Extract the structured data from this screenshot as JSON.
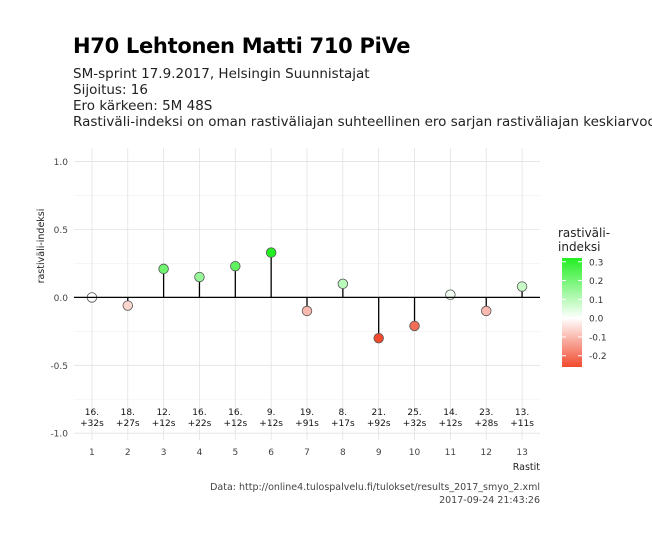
{
  "header": {
    "title": "H70 Lehtonen Matti 710 PiVe",
    "subtitle_lines": [
      "SM-sprint 17.9.2017, Helsingin Suunnistajat",
      "Sijoitus: 16",
      "Ero kärkeen: 5M 48S",
      "Rastiväli-indeksi on oman rastiväliajan suhteellinen ero sarjan rastiväliajan keskiarvoon"
    ]
  },
  "chart_data": {
    "type": "scatter",
    "title": "H70 Lehtonen Matti 710 PiVe",
    "xlabel": "Rastit",
    "ylabel": "rastiväli-indeksi",
    "xlim": [
      0.5,
      13.5
    ],
    "ylim": [
      -1.05,
      1.1
    ],
    "yticks": [
      -1.0,
      -0.5,
      0.0,
      0.5,
      1.0
    ],
    "ytick_labels": [
      "-1.0",
      "-0.5",
      "0.0",
      "0.5",
      "1.0"
    ],
    "xticks": [
      "1",
      "2",
      "3",
      "4",
      "5",
      "6",
      "7",
      "8",
      "9",
      "10",
      "11",
      "12",
      "13"
    ],
    "grid": true,
    "points": [
      {
        "x": 1,
        "y": 0.0,
        "rank": "16.",
        "diff": "+32s"
      },
      {
        "x": 2,
        "y": -0.06,
        "rank": "18.",
        "diff": "+27s"
      },
      {
        "x": 3,
        "y": 0.21,
        "rank": "12.",
        "diff": "+12s"
      },
      {
        "x": 4,
        "y": 0.15,
        "rank": "16.",
        "diff": "+22s"
      },
      {
        "x": 5,
        "y": 0.23,
        "rank": "16.",
        "diff": "+12s"
      },
      {
        "x": 6,
        "y": 0.33,
        "rank": "9.",
        "diff": "+12s"
      },
      {
        "x": 7,
        "y": -0.1,
        "rank": "19.",
        "diff": "+91s"
      },
      {
        "x": 8,
        "y": 0.1,
        "rank": "8.",
        "diff": "+17s"
      },
      {
        "x": 9,
        "y": -0.3,
        "rank": "21.",
        "diff": "+92s"
      },
      {
        "x": 10,
        "y": -0.21,
        "rank": "25.",
        "diff": "+32s"
      },
      {
        "x": 11,
        "y": 0.02,
        "rank": "14.",
        "diff": "+12s"
      },
      {
        "x": 12,
        "y": -0.1,
        "rank": "23.",
        "diff": "+28s"
      },
      {
        "x": 13,
        "y": 0.08,
        "rank": "13.",
        "diff": "+11s"
      }
    ],
    "legend": {
      "title_lines": [
        "rastiväli-",
        "indeksi"
      ],
      "placement": "right",
      "range": [
        -0.26,
        0.32
      ],
      "ticks": [
        0.3,
        0.2,
        0.1,
        0.0,
        -0.1,
        -0.2
      ],
      "tick_labels": [
        "0.3",
        "0.2",
        "0.1",
        "0.0",
        "-0.1",
        "-0.2"
      ],
      "color_low": "#f14a2e",
      "color_mid": "#ffffff",
      "color_high": "#22ee22"
    }
  },
  "footer": {
    "source": "Data: http://online4.tulospalvelu.fi/tulokset/results_2017_smyo_2.xml",
    "timestamp": "2017-09-24 21:43:26"
  }
}
